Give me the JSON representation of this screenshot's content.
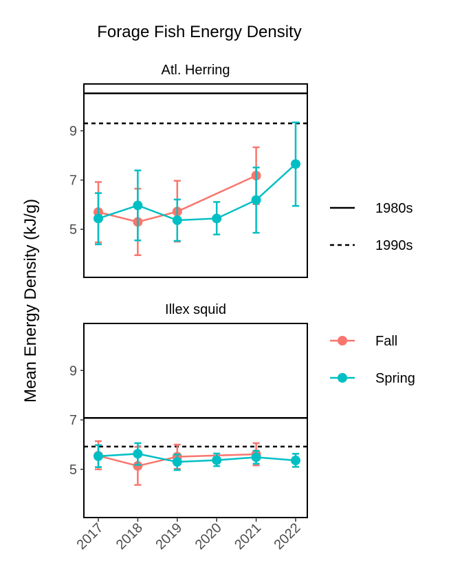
{
  "chart_data": {
    "type": "line",
    "title": "Forage Fish Energy Density",
    "ylabel": "Mean Energy Density (kJ/g)",
    "xlabel": "",
    "x": [
      2017,
      2018,
      2019,
      2020,
      2021,
      2022
    ],
    "x_tick_labels": [
      "2017",
      "2018",
      "2019",
      "2020",
      "2021",
      "2022"
    ],
    "y_ticks": [
      5,
      7,
      9
    ],
    "ylim": [
      3.05,
      10.9
    ],
    "grid": false,
    "legend_placement": "right",
    "colors": {
      "Fall": "#F8766D",
      "Spring": "#00BFC4",
      "reference": "#000000"
    },
    "reference_legend": [
      {
        "name": "1980s",
        "linetype": "solid"
      },
      {
        "name": "1990s",
        "linetype": "dashed"
      }
    ],
    "series_legend": [
      "Fall",
      "Spring"
    ],
    "panels": [
      {
        "title": "Atl. Herring",
        "reference_lines": {
          "1980s": 10.52,
          "1990s": 9.3
        },
        "series": [
          {
            "name": "Fall",
            "points": [
              {
                "x": 2017,
                "y": 5.7,
                "lo": 4.47,
                "hi": 6.92
              },
              {
                "x": 2018,
                "y": 5.3,
                "lo": 3.95,
                "hi": 6.65
              },
              {
                "x": 2019,
                "y": 5.72,
                "lo": 4.5,
                "hi": 6.97
              },
              {
                "x": 2021,
                "y": 7.18,
                "lo": 6.02,
                "hi": 8.33
              }
            ]
          },
          {
            "name": "Spring",
            "points": [
              {
                "x": 2017,
                "y": 5.44,
                "lo": 4.39,
                "hi": 6.47
              },
              {
                "x": 2018,
                "y": 5.97,
                "lo": 4.55,
                "hi": 7.39
              },
              {
                "x": 2019,
                "y": 5.37,
                "lo": 4.53,
                "hi": 6.21
              },
              {
                "x": 2020,
                "y": 5.44,
                "lo": 4.79,
                "hi": 6.11
              },
              {
                "x": 2021,
                "y": 6.19,
                "lo": 4.86,
                "hi": 7.51
              },
              {
                "x": 2022,
                "y": 7.65,
                "lo": 5.95,
                "hi": 9.34
              }
            ]
          }
        ]
      },
      {
        "title": "Illex squid",
        "reference_lines": {
          "1980s": 7.08,
          "1990s": 5.92
        },
        "series": [
          {
            "name": "Fall",
            "points": [
              {
                "x": 2017,
                "y": 5.55,
                "lo": 5.0,
                "hi": 6.14
              },
              {
                "x": 2018,
                "y": 5.14,
                "lo": 4.37,
                "hi": 5.91
              },
              {
                "x": 2019,
                "y": 5.51,
                "lo": 5.02,
                "hi": 6.0
              },
              {
                "x": 2021,
                "y": 5.61,
                "lo": 5.16,
                "hi": 6.06
              }
            ]
          },
          {
            "name": "Spring",
            "points": [
              {
                "x": 2017,
                "y": 5.53,
                "lo": 5.09,
                "hi": 5.98
              },
              {
                "x": 2018,
                "y": 5.63,
                "lo": 5.18,
                "hi": 6.06
              },
              {
                "x": 2019,
                "y": 5.3,
                "lo": 4.97,
                "hi": 5.6
              },
              {
                "x": 2020,
                "y": 5.37,
                "lo": 5.13,
                "hi": 5.64
              },
              {
                "x": 2021,
                "y": 5.49,
                "lo": 5.23,
                "hi": 5.75
              },
              {
                "x": 2022,
                "y": 5.36,
                "lo": 5.1,
                "hi": 5.63
              }
            ]
          }
        ]
      }
    ]
  }
}
